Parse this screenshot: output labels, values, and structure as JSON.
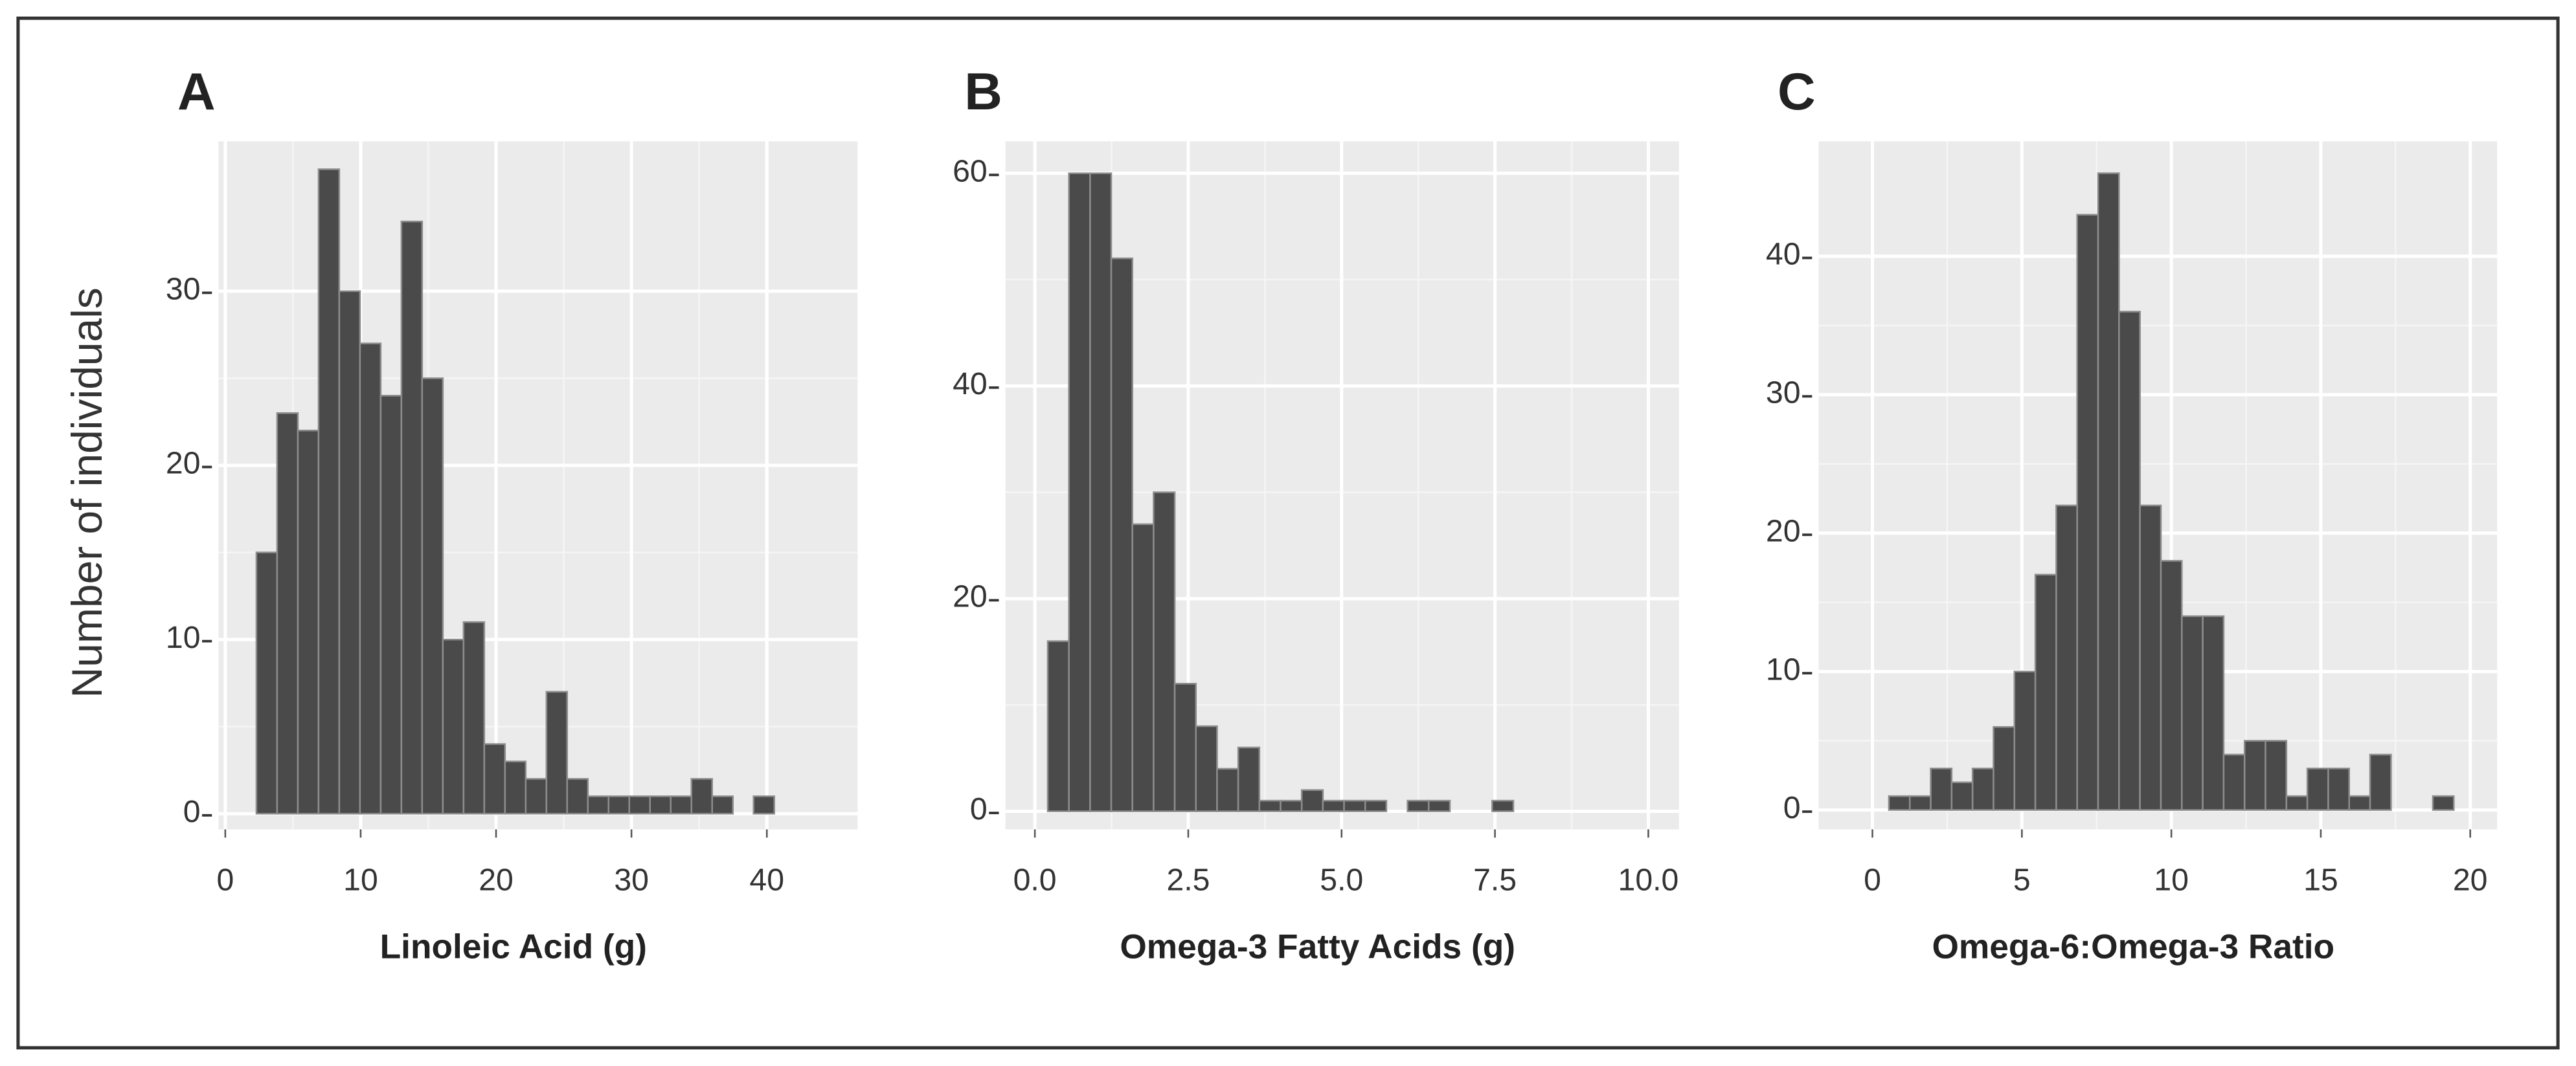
{
  "chart_data": [
    {
      "type": "histogram",
      "panel_label": "A",
      "xlabel": "Linoleic Acid (g)",
      "ylabel": "Number of individuals",
      "bins": [
        2.3,
        3.83,
        5.36,
        6.89,
        8.42,
        9.95,
        11.48,
        13.01,
        14.54,
        16.07,
        17.6,
        19.13,
        20.66,
        22.19,
        23.72,
        25.25,
        26.78,
        28.31,
        29.84,
        31.37,
        32.9,
        34.43,
        35.96,
        37.49,
        39.02,
        40.55
      ],
      "values": [
        15,
        23,
        22,
        37,
        30,
        27,
        24,
        34,
        25,
        10,
        11,
        4,
        3,
        2,
        7,
        2,
        1,
        1,
        1,
        1,
        1,
        2,
        1,
        0,
        1
      ],
      "color": "#4a4a4a",
      "xlim": [
        -0.5,
        46.7
      ],
      "ylim": [
        -0.9,
        38.6
      ],
      "xticks": [
        0,
        10,
        20,
        30,
        40
      ],
      "yticks": [
        0,
        10,
        20,
        30
      ],
      "grid": true
    },
    {
      "type": "histogram",
      "panel_label": "B",
      "xlabel": "Omega-3 Fatty Acids (g)",
      "bins": [
        0.21,
        0.555,
        0.9,
        1.245,
        1.59,
        1.935,
        2.28,
        2.625,
        2.97,
        3.315,
        3.66,
        4.005,
        4.35,
        4.695,
        5.04,
        5.385,
        5.73,
        6.075,
        6.42,
        6.765,
        7.11,
        7.455,
        7.8
      ],
      "values": [
        16,
        60,
        60,
        52,
        27,
        30,
        12,
        8,
        4,
        6,
        1,
        1,
        2,
        1,
        1,
        1,
        0,
        1,
        1,
        0,
        0,
        1
      ],
      "color": "#4a4a4a",
      "xlim": [
        -0.48,
        10.5
      ],
      "ylim": [
        -1.7,
        63
      ],
      "xticks": [
        {
          "value": 0,
          "label": "0.0"
        },
        2.5,
        {
          "value": 5,
          "label": "5.0"
        },
        7.5,
        {
          "value": 10,
          "label": "10.0"
        }
      ],
      "yticks": [
        0,
        20,
        40,
        60
      ],
      "grid": true
    },
    {
      "type": "histogram",
      "panel_label": "C",
      "xlabel": "Omega-6:Omega-3 Ratio",
      "bins": [
        0.55,
        1.25,
        1.95,
        2.65,
        3.35,
        4.05,
        4.75,
        5.45,
        6.15,
        6.85,
        7.55,
        8.25,
        8.95,
        9.65,
        10.35,
        11.05,
        11.75,
        12.45,
        13.15,
        13.85,
        14.55,
        15.25,
        15.95,
        16.65,
        17.35,
        18.05,
        18.75,
        19.45
      ],
      "values": [
        1,
        1,
        3,
        2,
        3,
        6,
        10,
        17,
        22,
        43,
        46,
        36,
        22,
        18,
        14,
        14,
        4,
        5,
        5,
        1,
        3,
        3,
        1,
        4,
        0,
        0,
        1
      ],
      "color": "#4a4a4a",
      "xlim": [
        -1.8,
        20.9
      ],
      "ylim": [
        -1.4,
        48.3
      ],
      "xticks": [
        0,
        5,
        10,
        15,
        20
      ],
      "yticks": [
        0,
        10,
        20,
        30,
        40
      ],
      "grid": true
    }
  ]
}
